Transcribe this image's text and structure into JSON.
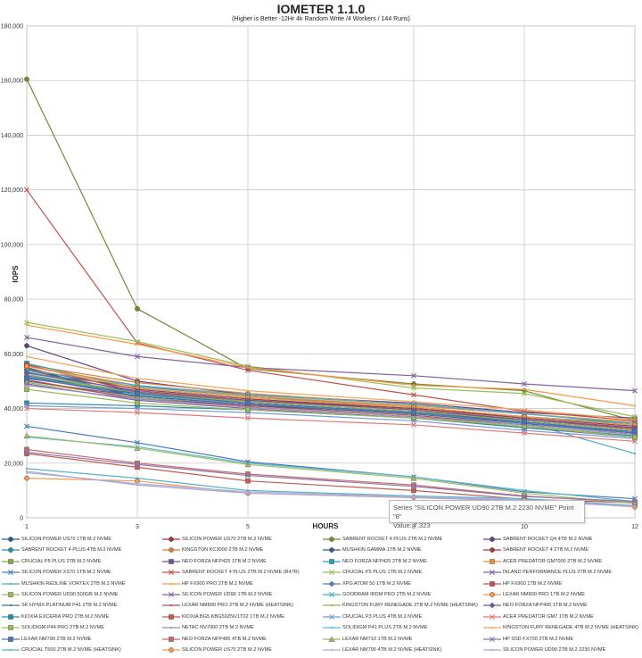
{
  "chart_data": {
    "type": "line",
    "title": "IOMETER 1.1.0",
    "subtitle": "(Higher is Better -12Hr 4k Random Write /4 Workers / 144 Runs)",
    "xlabel": "HOURS",
    "ylabel": "IOPS",
    "x": [
      1,
      3,
      5,
      8,
      10,
      12
    ],
    "xlim": [
      1,
      12
    ],
    "ylim": [
      0,
      180000
    ],
    "y_ticks": [
      "0",
      "20,000",
      "40,000",
      "60,000",
      "80,000",
      "100,000",
      "120,000",
      "140,000",
      "160,000",
      "180,000"
    ],
    "x_ticks": [
      "1",
      "3",
      "5",
      "8",
      "10",
      "12"
    ],
    "grid": true,
    "legend_position": "bottom",
    "tooltip": {
      "line1": "Series \"SILICON POWER UD90 2TB M.2 2230 NVME\" Point \"8\"",
      "line2": "Value: 7,323"
    },
    "series": [
      {
        "name": "SILICON POWER US70 1TB M.2 NVME",
        "color": "#2f5d8a",
        "marker": "circle",
        "values": [
          55000,
          44000,
          41000,
          38500,
          36000,
          33000
        ]
      },
      {
        "name": "SILICON POWER US70 2TB M.2 NVME",
        "color": "#9a3a36",
        "marker": "circle",
        "values": [
          54000,
          46000,
          43000,
          40000,
          37000,
          34000
        ]
      },
      {
        "name": "SABRENT ROCKET 4 PLUS 2TB M.2 NVME",
        "color": "#718c35",
        "marker": "circle",
        "values": [
          160500,
          76500,
          54500,
          49000,
          46500,
          35500
        ]
      },
      {
        "name": "SABRENT ROCKET Q4 4TB M.2 NVME",
        "color": "#5d4680",
        "marker": "circle",
        "values": [
          63000,
          50000,
          45000,
          42000,
          38500,
          36500
        ]
      },
      {
        "name": "SABRENT ROCKET 4 PLUS 4TB M.2 NVME",
        "color": "#2a8faa",
        "marker": "circle",
        "values": [
          53000,
          48000,
          44500,
          40500,
          37000,
          34000
        ]
      },
      {
        "name": "KINGSTON KC3000 2TB M.2 NVME",
        "color": "#d6813a",
        "marker": "circle",
        "values": [
          56000,
          49500,
          45500,
          41500,
          38000,
          35000
        ]
      },
      {
        "name": "MUSHKIN GAMMA 1TB M.2 NVME",
        "color": "#3a5f8a",
        "marker": "circle",
        "values": [
          52000,
          45000,
          42000,
          38500,
          35500,
          32000
        ]
      },
      {
        "name": "SABRENT ROCKET 4 2TB M.2 NVME",
        "color": "#a33b3b",
        "marker": "circle",
        "values": [
          54500,
          47000,
          43500,
          40000,
          36500,
          33500
        ]
      },
      {
        "name": "CRUCIAL P5 PLUS 2TB M.2 NVME",
        "color": "#8aa64a",
        "marker": "square",
        "values": [
          51000,
          46000,
          43000,
          39500,
          36000,
          32500
        ]
      },
      {
        "name": "NEO FORZA NFP425 1TB M.2 NVME",
        "color": "#6b5690",
        "marker": "square",
        "values": [
          50000,
          44500,
          41500,
          38000,
          35000,
          31500
        ]
      },
      {
        "name": "NEO FORZA NFP425 2TB M.2 NVME",
        "color": "#2f9bb5",
        "marker": "square",
        "values": [
          56500,
          47500,
          44000,
          40500,
          37000,
          34500
        ]
      },
      {
        "name": "ACER PREDATOR GM7000 2TB M.2 NVME",
        "color": "#e0923f",
        "marker": "square",
        "values": [
          55500,
          48500,
          44500,
          41000,
          38000,
          35000
        ]
      },
      {
        "name": "SILICON POWER XS70 1TB M.2 NVME",
        "color": "#4a7bb5",
        "marker": "x",
        "values": [
          33500,
          27500,
          20500,
          15000,
          9500,
          7000
        ]
      },
      {
        "name": "SABRENT ROCKET 4 PLUS 2TB M.2 NVME (B47R)",
        "color": "#c0504d",
        "marker": "x",
        "values": [
          120000,
          64000,
          54000,
          45000,
          39000,
          35500
        ]
      },
      {
        "name": "CRUCIAL P5 PLUS 1TB M.2 NVME",
        "color": "#9bbb59",
        "marker": "x",
        "values": [
          71500,
          64500,
          55500,
          47500,
          45500,
          37000
        ]
      },
      {
        "name": "INLAND PERFORMANCE PLUS 2TB M.2 NVME",
        "color": "#8064a2",
        "marker": "x",
        "values": [
          66000,
          59000,
          55000,
          52000,
          49000,
          46500
        ]
      },
      {
        "name": "MUSHKIN REDLINE VORTEX 2TB M.2 NVME",
        "color": "#4bacc6",
        "marker": "none",
        "values": [
          53500,
          45000,
          42000,
          38000,
          35000,
          23500
        ]
      },
      {
        "name": "HP FX900 PRO 2TB M.2 NVME",
        "color": "#f79646",
        "marker": "none",
        "values": [
          70500,
          63500,
          55000,
          48500,
          47000,
          41000
        ]
      },
      {
        "name": "XPG ATOM 50 1TB M.2 NVME",
        "color": "#4f81bd",
        "marker": "diamond",
        "values": [
          52000,
          46000,
          42000,
          38500,
          35000,
          31000
        ]
      },
      {
        "name": "HP FX900 1TB M.2 NVME",
        "color": "#c0504d",
        "marker": "square",
        "values": [
          56000,
          46000,
          42500,
          39000,
          36000,
          32500
        ]
      },
      {
        "name": "SILICON POWER UD90 500GB M.2 NVME",
        "color": "#9bbb59",
        "marker": "square",
        "values": [
          49500,
          44000,
          40500,
          37000,
          33500,
          30000
        ]
      },
      {
        "name": "SILICON POWER UD90 1TB M.2 NVME",
        "color": "#8064a2",
        "marker": "x",
        "values": [
          49000,
          43000,
          40000,
          36500,
          33000,
          29500
        ]
      },
      {
        "name": "GOODRAM IRDM PRO 2TB M.2 NVME",
        "color": "#4bacc6",
        "marker": "x",
        "values": [
          54000,
          48500,
          45000,
          41500,
          38000,
          34500
        ]
      },
      {
        "name": "LEXAR NM800 PRO 1TB M.2 NVME",
        "color": "#f79646",
        "marker": "circle",
        "values": [
          55500,
          47500,
          44000,
          40500,
          37000,
          34000
        ]
      },
      {
        "name": "SK HYNIX PLATINUM P41 2TB M.2 NVME",
        "color": "#3f6ea8",
        "marker": "none",
        "values": [
          51500,
          44500,
          41500,
          38000,
          34500,
          31000
        ]
      },
      {
        "name": "LEXAR NM800 PRO 2TB M.2 NVME (HEATSINK)",
        "color": "#b84b48",
        "marker": "none",
        "values": [
          50500,
          43500,
          41000,
          37500,
          34000,
          30500
        ]
      },
      {
        "name": "KINGSTON FURY RENEGADE 2TB M.2 NVME (HEATSINK)",
        "color": "#8fb04f",
        "marker": "none",
        "values": [
          52500,
          45500,
          42500,
          39000,
          35500,
          32000
        ]
      },
      {
        "name": "NEO FORZA NFP495 1TB M.2 NVME",
        "color": "#6f58a0",
        "marker": "diamond",
        "values": [
          53000,
          46500,
          43000,
          39500,
          36000,
          33000
        ]
      },
      {
        "name": "KIOXIA EXCERIA PRO 2TB M.2 NVME",
        "color": "#2d8da8",
        "marker": "square",
        "values": [
          42000,
          41000,
          39500,
          36500,
          33000,
          30000
        ]
      },
      {
        "name": "KIOXIA BG5 KBG50ZNV1T02 1TB M.2 NVME",
        "color": "#c45a50",
        "marker": "square",
        "values": [
          23500,
          18500,
          13500,
          10000,
          6800,
          5500
        ]
      },
      {
        "name": "CRUCIAL P3 PLUS 4TB M.2 NVME",
        "color": "#7a98d0",
        "marker": "x",
        "values": [
          41000,
          40000,
          38500,
          35500,
          32000,
          29000
        ]
      },
      {
        "name": "ACER PREDATOR GM7 1TB M.2 NVME",
        "color": "#e07a7a",
        "marker": "x",
        "values": [
          40000,
          38500,
          36500,
          34000,
          31000,
          28000
        ]
      },
      {
        "name": "SOLIDIGM P44 PRO 2TB M.2 NVME",
        "color": "#9bbb59",
        "marker": "square",
        "values": [
          47000,
          42000,
          39500,
          36500,
          33500,
          29500
        ]
      },
      {
        "name": "NETAC NV7000 2TB M.2 NVME",
        "color": "#9a8ac0",
        "marker": "none",
        "values": [
          48500,
          43500,
          40500,
          37000,
          34000,
          30500
        ]
      },
      {
        "name": "SOLIDIGM P41 PLUS 2TB M.2 NVME",
        "color": "#5cb8d0",
        "marker": "none",
        "values": [
          29500,
          26000,
          20000,
          15000,
          10000,
          6000
        ]
      },
      {
        "name": "KINGSTON FURY RENEGADE 4TB M.2 NVME (HEATSINK)",
        "color": "#f3a35c",
        "marker": "none",
        "values": [
          59000,
          51000,
          46500,
          42500,
          39500,
          36000
        ]
      },
      {
        "name": "LEXAR NM790 2TB M.2 NVME",
        "color": "#4a74b0",
        "marker": "square",
        "values": [
          51000,
          45500,
          42000,
          38500,
          35000,
          31500
        ]
      },
      {
        "name": "NEO FORZA NFP495 4TB M.2 NVME",
        "color": "#c96a66",
        "marker": "square",
        "values": [
          25000,
          20000,
          16000,
          12000,
          8000,
          5500
        ]
      },
      {
        "name": "LEXAR NM710 1TB M.2 NVME",
        "color": "#a0bd62",
        "marker": "triangle",
        "values": [
          30000,
          25500,
          19500,
          14500,
          9000,
          5200
        ]
      },
      {
        "name": "HP SSD FX700 2TB M.2 NVME",
        "color": "#8a76ad",
        "marker": "x",
        "values": [
          24000,
          19500,
          15500,
          11500,
          7800,
          6000
        ]
      },
      {
        "name": "CRUCIAL T500 2TB M.2 NVME (HEATSINK)",
        "color": "#56b1cc",
        "marker": "none",
        "values": [
          18000,
          14500,
          10000,
          8000,
          7000,
          4500
        ]
      },
      {
        "name": "SILICON POWER US75 2TB M.2 NVME",
        "color": "#f39a55",
        "marker": "circle",
        "values": [
          14500,
          13500,
          9000,
          7500,
          6500,
          4000
        ]
      },
      {
        "name": "LEXAR NM790 4TB M.2 NVME (HEATSINK)",
        "color": "#9fb5dd",
        "marker": "none",
        "values": [
          16500,
          12500,
          9500,
          7800,
          6500,
          4300
        ]
      },
      {
        "name": "SILICON POWER UD90 2TB M.2 2230 NVME",
        "color": "#b2a4d4",
        "marker": "none",
        "values": [
          17000,
          12000,
          9000,
          7323,
          6200,
          4100
        ]
      }
    ]
  }
}
